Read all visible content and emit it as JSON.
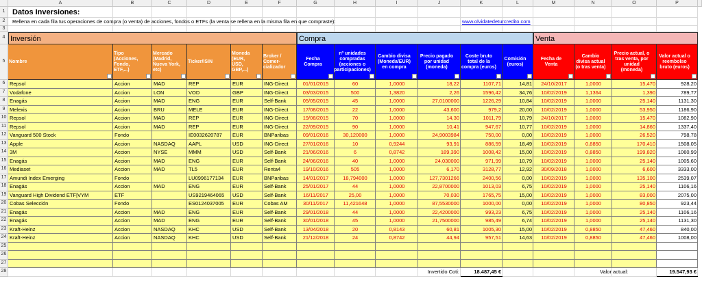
{
  "header": {
    "title": "Datos Inversiones:",
    "instructions": "Rellena en cada fila tus operaciones de compra (o venta) de acciones, fondos o ETFs (la venta se rellena en la misma fila en que compraste):",
    "link": "www.olvidatedeturcredito.com"
  },
  "column_letters": [
    "A",
    "B",
    "C",
    "D",
    "E",
    "F",
    "G",
    "H",
    "I",
    "J",
    "K",
    "L",
    "M",
    "N",
    "O",
    "P"
  ],
  "row_numbers": [
    1,
    2,
    3,
    4,
    5,
    6,
    7,
    8,
    9,
    10,
    11,
    12,
    13,
    14,
    15,
    16,
    17,
    18,
    19,
    20,
    21,
    22,
    23,
    24,
    25,
    26,
    27,
    28
  ],
  "sections": [
    "Inversión",
    "Compra",
    "Venta"
  ],
  "columns": [
    "Nombre",
    "Tipo (Acciones, Fondo, ETF,...)",
    "Mercado (Madrid, Nueva York, etc)",
    "Ticker/ISIN",
    "Moneda (EUR, USD, GBP,...)",
    "Broker / Comer-cializador",
    "Fecha Compra",
    "nº unidades compradas (acciones o participaciones)",
    "Cambio divisa (Moneda/EUR) en compra",
    "Precio pagado por unidad (moneda)",
    "Coste bruto total de la compra (euros)",
    "Comisión (euros)",
    "Fecha de Venta",
    "Cambio divisa actual (o tras venta)",
    "Precio actual, o tras venta, por unidad (moneda)",
    "Valor actual o reembolso bruto (euros)"
  ],
  "rows": [
    [
      "Repsol",
      "Accion",
      "MAD",
      "REP",
      "EUR",
      "ING-Direct",
      "01/01/2015",
      "60",
      "1,0000",
      "18,22",
      "1107,71",
      "14,81",
      "24/10/2017",
      "1,0000",
      "15,470",
      "928,20"
    ],
    [
      "Vodafone",
      "Accion",
      "LON",
      "VOD",
      "GBP",
      "ING-Direct",
      "03/03/2015",
      "500",
      "1,3820",
      "2,26",
      "1596,42",
      "34,76",
      "10/02/2019",
      "1,1364",
      "1,390",
      "789,77"
    ],
    [
      "Enagás",
      "Accion",
      "MAD",
      "ENG",
      "EUR",
      "Self-Bank",
      "05/05/2015",
      "45",
      "1,0000",
      "27,0100000",
      "1226,29",
      "10,84",
      "10/02/2019",
      "1,0000",
      "25,140",
      "1131,30"
    ],
    [
      "Melexis",
      "Accion",
      "BRU",
      "MELE",
      "EUR",
      "ING-Direct",
      "17/08/2015",
      "22",
      "1,0000",
      "43,600",
      "979,2",
      "20,00",
      "10/02/2019",
      "1,0000",
      "53,950",
      "1186,90"
    ],
    [
      "Repsol",
      "Accion",
      "MAD",
      "REP",
      "EUR",
      "ING-Direct",
      "19/08/2015",
      "70",
      "1,0000",
      "14,30",
      "1011,79",
      "10,79",
      "24/10/2017",
      "1,0000",
      "15,470",
      "1082,90"
    ],
    [
      "Repsol",
      "Accion",
      "MAD",
      "REP",
      "EUR",
      "ING-Direct",
      "22/09/2015",
      "90",
      "1,0000",
      "10,41",
      "947,67",
      "10,77",
      "10/02/2019",
      "1,0000",
      "14,860",
      "1337,40"
    ],
    [
      "Vanguard 500 Stock",
      "Fondo",
      null,
      "IE0032620787",
      "EUR",
      "BNParibas",
      "09/01/2016",
      "30,120000",
      "1,0000",
      "24,9003984",
      "750,00",
      "0,00",
      "10/02/2019",
      "1,0000",
      "26,520",
      "798,78"
    ],
    [
      "Apple",
      "Accion",
      "NASDAQ",
      "AAPL",
      "USD",
      "ING-Direct",
      "27/01/2016",
      "10",
      "0,9244",
      "93,91",
      "886,59",
      "18,49",
      "10/02/2019",
      "0,8850",
      "170,410",
      "1508,05"
    ],
    [
      "3M",
      "Accion",
      "NYSE",
      "MMM",
      "USD",
      "Self-Bank",
      "21/06/2016",
      "6",
      "0,8742",
      "189,390",
      "1008,42",
      "15,00",
      "10/02/2019",
      "0,8850",
      "199,820",
      "1060,99"
    ],
    [
      "Enagás",
      "Accion",
      "MAD",
      "ENG",
      "EUR",
      "Self-Bank",
      "24/06/2016",
      "40",
      "1,0000",
      "24,030000",
      "971,99",
      "10,79",
      "10/02/2019",
      "1,0000",
      "25,140",
      "1005,60"
    ],
    [
      "Mediaset",
      "Accion",
      "MAD",
      "TL5",
      "EUR",
      "Renta4",
      "19/10/2016",
      "505",
      "1,0000",
      "6,170",
      "3128,77",
      "12,92",
      "30/09/2018",
      "1,0000",
      "6,600",
      "3333,00"
    ],
    [
      "Amundi Index Emerging",
      "Fondo",
      null,
      "LU0996177134",
      "EUR",
      "BNParibas",
      "14/01/2017",
      "18,794000",
      "1,0000",
      "127,7301266",
      "2400,56",
      "0,00",
      "10/02/2019",
      "1,0000",
      "135,100",
      "2539,07"
    ],
    [
      "Enagás",
      "Accion",
      "MAD",
      "ENG",
      "EUR",
      "Self-Bank",
      "25/01/2017",
      "44",
      "1,0000",
      "22,8700000",
      "1013,03",
      "6,75",
      "10/02/2019",
      "1,0000",
      "25,140",
      "1106,16"
    ],
    [
      "Vanguard High Dividend ETF|VYM",
      "ETF",
      null,
      "US9219464065",
      "USD",
      "Self-Bank",
      "16/11/2017",
      "25,00",
      "1,0000",
      "70,030",
      "1765,75",
      "15,00",
      "10/02/2019",
      "1,0000",
      "83,000",
      "2075,00"
    ],
    [
      "Cobas Selección",
      "Fondo",
      null,
      "ES0124037005",
      "EUR",
      "Cobas AM",
      "30/11/2017",
      "11,421648",
      "1,0000",
      "87,5530000",
      "1000,00",
      "0,00",
      "10/02/2019",
      "1,0000",
      "80,850",
      "923,44"
    ],
    [
      "Enagás",
      "Accion",
      "MAD",
      "ENG",
      "EUR",
      "Self-Bank",
      "29/01/2018",
      "44",
      "1,0000",
      "22,4200000",
      "993,23",
      "6,75",
      "10/02/2019",
      "1,0000",
      "25,140",
      "1106,16"
    ],
    [
      "Enagás",
      "Accion",
      "MAD",
      "ENG",
      "EUR",
      "Self-Bank",
      "30/01/2018",
      "45",
      "1,0000",
      "21,7500000",
      "985,49",
      "6,74",
      "10/02/2019",
      "1,0000",
      "25,140",
      "1131,30"
    ],
    [
      "Kraft-Heinz",
      "Accion",
      "NASDAQ",
      "KHC",
      "USD",
      "Self-Bank",
      "13/04/2018",
      "20",
      "0,8143",
      "60,81",
      "1005,30",
      "15,00",
      "10/02/2019",
      "0,8850",
      "47,460",
      "840,00"
    ],
    [
      "Kraft-Heinz",
      "Accion",
      "NASDAQ",
      "KHC",
      "USD",
      "Self-Bank",
      "21/12/2018",
      "24",
      "0,8742",
      "44,94",
      "957,51",
      "14,63",
      "10/02/2019",
      "0,8850",
      "47,460",
      "1008,00"
    ]
  ],
  "summary": {
    "invested_label": "Invertido Coti:",
    "invested_value": "18.487,45 €",
    "current_label": "Valor actual:",
    "current_value": "19.547,93 €"
  }
}
